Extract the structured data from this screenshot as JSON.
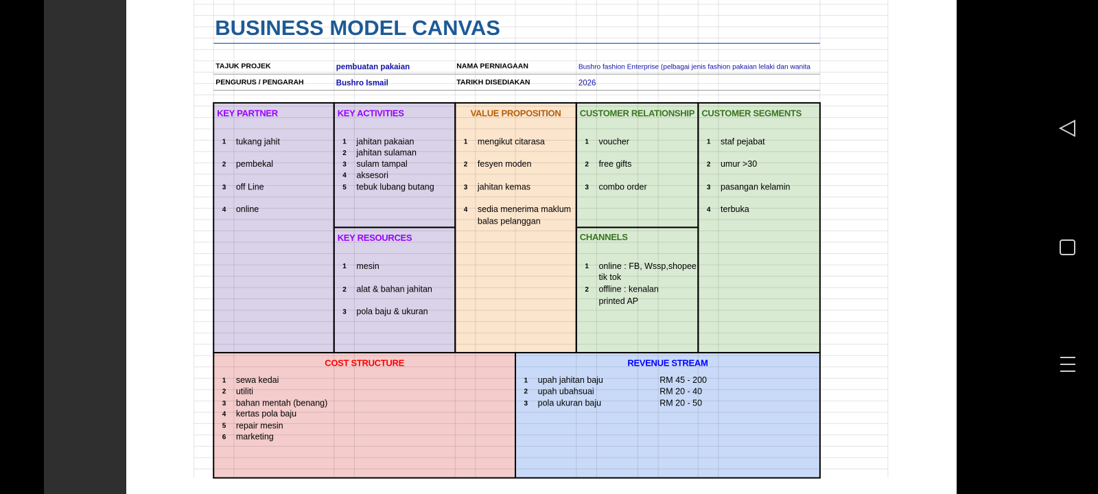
{
  "title": "BUSINESS MODEL CANVAS",
  "info": [
    {
      "label": "TAJUK PROJEK",
      "value": "pembuatan pakaian"
    },
    {
      "label": "NAMA PERNIAGAAN",
      "value": "Bushro fashion Enterprise (pelbagai jenis fashion pakaian lelaki dan wanita"
    },
    {
      "label": "PENGURUS / PENGARAH",
      "value": "Bushro Ismail"
    },
    {
      "label": "TARIKH DISEDIAKAN",
      "value": "2026"
    }
  ],
  "sections": [
    {
      "title": "KEY PARTNER",
      "items": [
        {
          "no": 1,
          "text": [
            "tukang jahit"
          ]
        },
        {
          "no": 2,
          "text": [
            "pembekal"
          ]
        },
        {
          "no": 3,
          "text": [
            "off Line"
          ]
        },
        {
          "no": 4,
          "text": [
            "online"
          ]
        }
      ]
    },
    {
      "title": "KEY ACTIVITIES",
      "items": [
        {
          "no": 1,
          "text": [
            " jahitan pakaian"
          ]
        },
        {
          "no": 2,
          "text": [
            "jahitan sulaman"
          ]
        },
        {
          "no": 3,
          "text": [
            "sulam tampal"
          ]
        },
        {
          "no": 4,
          "text": [
            "aksesori"
          ]
        },
        {
          "no": 5,
          "text": [
            "tebuk lubang butang"
          ]
        }
      ]
    },
    {
      "title": "VALUE PROPOSITION",
      "items": [
        {
          "no": 1,
          "text": [
            "mengikut citarasa"
          ]
        },
        {
          "no": 2,
          "text": [
            "fesyen moden"
          ]
        },
        {
          "no": 3,
          "text": [
            "jahitan kemas"
          ]
        },
        {
          "no": 4,
          "text": [
            "sedia menerima maklum",
            "balas pelanggan"
          ]
        }
      ]
    },
    {
      "title": "CUSTOMER RELATIONSHIP",
      "items": [
        {
          "no": 1,
          "text": [
            "voucher"
          ]
        },
        {
          "no": 2,
          "text": [
            "free gifts"
          ]
        },
        {
          "no": 3,
          "text": [
            "combo order"
          ]
        }
      ]
    },
    {
      "title": "CUSTOMER SEGMENTS",
      "items": [
        {
          "no": 1,
          "text": [
            "staf pejabat"
          ]
        },
        {
          "no": 2,
          "text": [
            "umur >30"
          ]
        },
        {
          "no": 3,
          "text": [
            "pasangan kelamin"
          ]
        },
        {
          "no": 4,
          "text": [
            "terbuka"
          ]
        }
      ]
    },
    {
      "title": "KEY RESOURCES",
      "items": [
        {
          "no": 1,
          "text": [
            "mesin"
          ]
        },
        {
          "no": 2,
          "text": [
            "alat & bahan jahitan"
          ]
        },
        {
          "no": 3,
          "text": [
            "pola baju & ukuran"
          ]
        }
      ]
    },
    {
      "title": "CHANNELS",
      "items": [
        {
          "no": 1,
          "text": [
            "online :  FB, Wssp,shopee",
            "tik tok"
          ]
        },
        {
          "no": 2,
          "text": [
            "offline : kenalan",
            "printed AP"
          ]
        }
      ]
    },
    {
      "title": "COST STRUCTURE",
      "items": [
        {
          "no": 1,
          "text": [
            "sewa kedai"
          ]
        },
        {
          "no": 2,
          "text": [
            "utiliti"
          ]
        },
        {
          "no": 3,
          "text": [
            "bahan mentah (benang)"
          ]
        },
        {
          "no": 4,
          "text": [
            "kertas pola baju"
          ]
        },
        {
          "no": 5,
          "text": [
            "repair mesin"
          ]
        },
        {
          "no": 6,
          "text": [
            "marketing"
          ]
        }
      ]
    },
    {
      "title": "REVENUE STREAM",
      "items": [
        {
          "no": 1,
          "text": [
            "upah jahitan baju"
          ],
          "amount": "RM 45 - 200"
        },
        {
          "no": 2,
          "text": [
            "upah ubahsuai"
          ],
          "amount": "RM 20 - 40"
        },
        {
          "no": 3,
          "text": [
            "pola ukuran baju"
          ],
          "amount": "RM 20 - 50"
        }
      ]
    }
  ]
}
